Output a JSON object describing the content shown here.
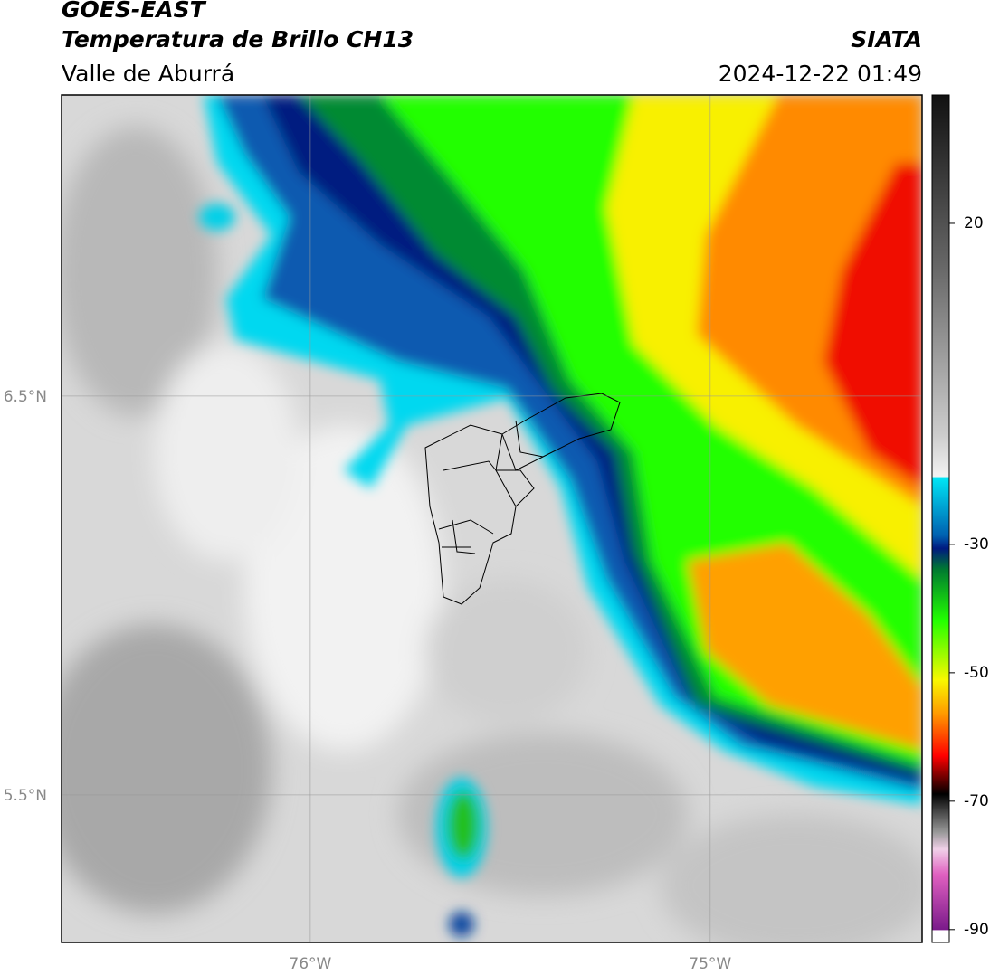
{
  "header": {
    "title": "GOES-EAST",
    "subtitle": "Temperatura de Brillo CH13",
    "region": "Valle de Aburrá",
    "source": "SIATA",
    "timestamp": "2024-12-22 01:49"
  },
  "map": {
    "xlim": [
      -76.622,
      -74.47
    ],
    "ylim": [
      5.13,
      7.255
    ],
    "xticks": [
      {
        "value": -76,
        "label": "76°W"
      },
      {
        "value": -75,
        "label": "75°W"
      }
    ],
    "yticks": [
      {
        "value": 6.5,
        "label": "6.5°N"
      },
      {
        "value": 5.5,
        "label": "5.5°N"
      }
    ],
    "grid": true
  },
  "colorbar": {
    "clim": [
      -92,
      40
    ],
    "ticks": [
      20,
      -30,
      -50,
      -70,
      -90
    ]
  }
}
